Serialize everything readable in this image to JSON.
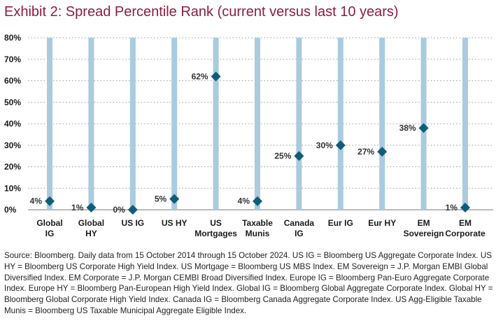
{
  "title": "Exhibit 2: Spread Percentile Rank (current versus last 10 years)",
  "chart_data": {
    "type": "scatter",
    "categories": [
      [
        "Global",
        "IG"
      ],
      [
        "Global",
        "HY"
      ],
      [
        "US IG"
      ],
      [
        "US HY"
      ],
      [
        "US",
        "Mortgages"
      ],
      [
        "Taxable",
        "Munis"
      ],
      [
        "Canada",
        "IG"
      ],
      [
        "Eur IG"
      ],
      [
        "Eur HY"
      ],
      [
        "EM",
        "Sovereign"
      ],
      [
        "EM",
        "Corporate"
      ]
    ],
    "values": [
      4,
      1,
      0,
      5,
      62,
      4,
      25,
      30,
      27,
      38,
      1
    ],
    "data_labels": [
      "4%",
      "1%",
      "0%",
      "5%",
      "62%",
      "4%",
      "25%",
      "30%",
      "27%",
      "38%",
      "1%"
    ],
    "range_bar_max": 80,
    "ylim": [
      0,
      80
    ],
    "yticks": [
      "0%",
      "10%",
      "20%",
      "30%",
      "40%",
      "50%",
      "60%",
      "70%",
      "80%"
    ],
    "grid": "horizontal dotted",
    "colors": {
      "range_bar": "#a9cbdd",
      "marker": "#0f5d7a",
      "title": "#8c1d3f"
    }
  },
  "source": "Source: Bloomberg. Daily data from 15 October 2014 through 15 October 2024. US IG = Bloomberg US Aggregate Corporate Index. US HY = Bloomberg US Corporate High Yield Index. US Mortgage = Bloomberg US MBS Index. EM Sovereign = J.P. Morgan EMBI Global Diversified Index. EM Corporate = J.P. Morgan CEMBI Broad Diversified Index. Europe IG = Bloomberg Pan-Euro Aggregate Corporate Index. Europe HY = Bloomberg Pan-European High Yield Index. Global IG = Bloomberg Global Aggregate Corporate Index. Global HY = Bloomberg Global Corporate High Yield Index. Canada IG = Bloomberg Canada Aggregate Corporate Index. US Agg-Eligible Taxable Munis = Bloomberg US Taxable Municipal Aggregate Eligible Index."
}
